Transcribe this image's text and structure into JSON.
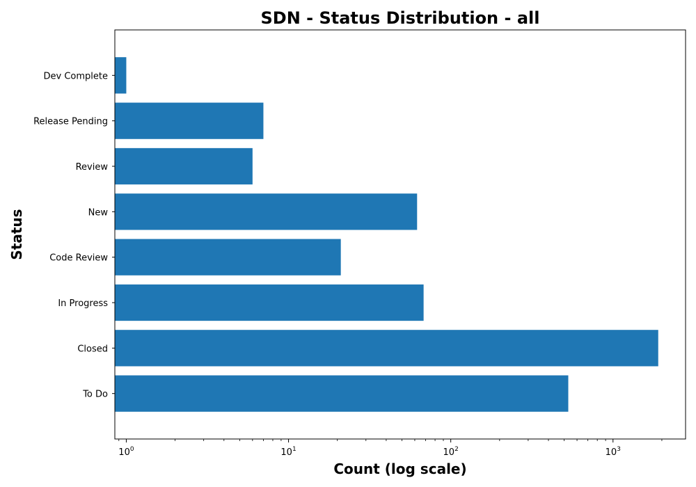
{
  "chart_data": {
    "type": "bar",
    "orientation": "horizontal",
    "title": "SDN - Status Distribution - all",
    "xlabel": "Count (log scale)",
    "ylabel": "Status",
    "x_scale": "log",
    "xlim": [
      0.85,
      2800
    ],
    "x_ticks": [
      {
        "base": "10",
        "exp": "0",
        "value": 1
      },
      {
        "base": "10",
        "exp": "1",
        "value": 10
      },
      {
        "base": "10",
        "exp": "2",
        "value": 100
      },
      {
        "base": "10",
        "exp": "3",
        "value": 1000
      }
    ],
    "categories": [
      "To Do",
      "Closed",
      "In Progress",
      "Code Review",
      "New",
      "Review",
      "Release Pending",
      "Dev Complete"
    ],
    "values": [
      530,
      1900,
      68,
      21,
      62,
      6,
      7,
      1
    ],
    "bar_color": "#1f77b4",
    "grid": false,
    "legend": "none"
  }
}
